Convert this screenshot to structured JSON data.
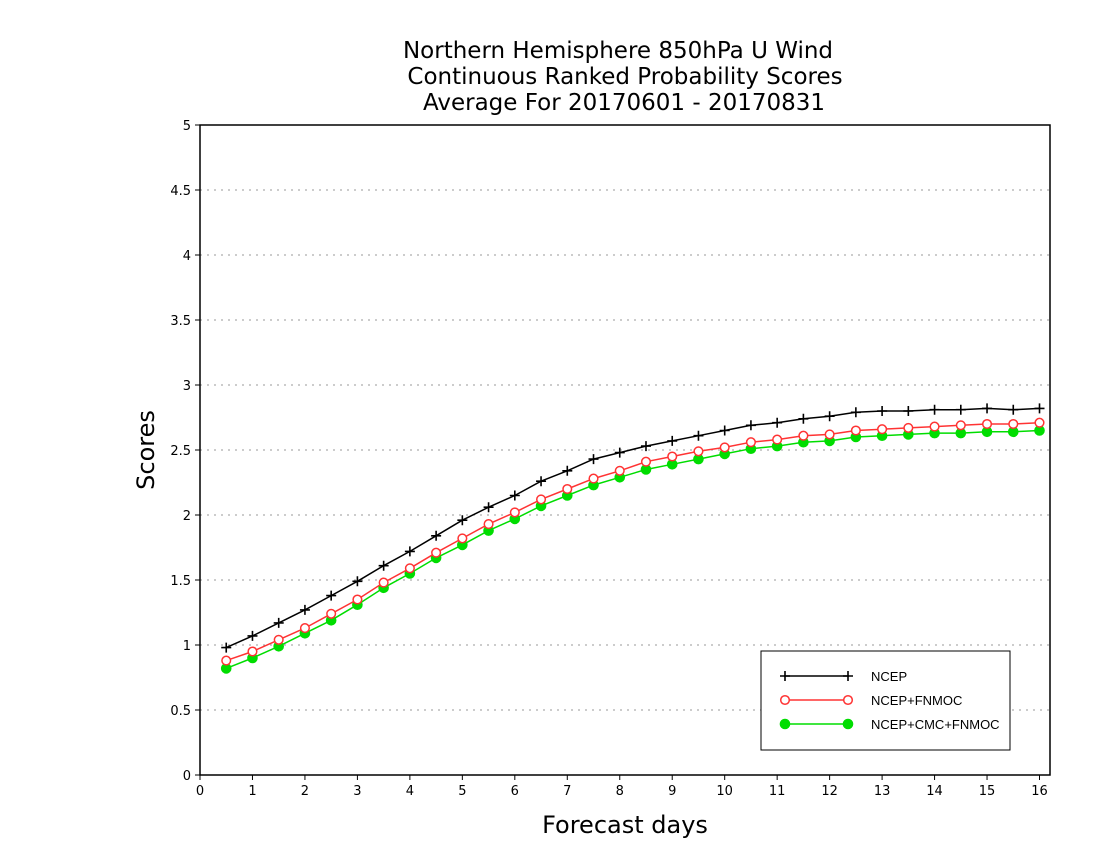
{
  "chart_data": {
    "type": "line",
    "title": [
      "Northern Hemisphere 850hPa U Wind",
      "Continuous Ranked Probability Scores",
      "Average For 20170601 - 20170831"
    ],
    "xlabel": "Forecast days",
    "ylabel": "Scores",
    "xlim": [
      0,
      16.2
    ],
    "ylim": [
      0,
      5
    ],
    "xticks": [
      0,
      1,
      2,
      3,
      4,
      5,
      6,
      7,
      8,
      9,
      10,
      11,
      12,
      13,
      14,
      15,
      16
    ],
    "yticks": [
      0,
      0.5,
      1,
      1.5,
      2,
      2.5,
      3,
      3.5,
      4,
      4.5,
      5
    ],
    "ytick_labels": [
      "0",
      "0.5",
      "1",
      "1.5",
      "2",
      "2.5",
      "3",
      "3.5",
      "4",
      "4.5",
      "5"
    ],
    "grid": "horizontal dotted",
    "legend_position": "bottom-right",
    "x": [
      0.5,
      1.0,
      1.5,
      2.0,
      2.5,
      3.0,
      3.5,
      4.0,
      4.5,
      5.0,
      5.5,
      6.0,
      6.5,
      7.0,
      7.5,
      8.0,
      8.5,
      9.0,
      9.5,
      10.0,
      10.5,
      11.0,
      11.5,
      12.0,
      12.5,
      13.0,
      13.5,
      14.0,
      14.5,
      15.0,
      15.5,
      16.0
    ],
    "series": [
      {
        "name": "NCEP",
        "color": "#000000",
        "marker": "plus",
        "values": [
          0.98,
          1.07,
          1.17,
          1.27,
          1.38,
          1.49,
          1.61,
          1.72,
          1.84,
          1.96,
          2.06,
          2.15,
          2.26,
          2.34,
          2.43,
          2.48,
          2.53,
          2.57,
          2.61,
          2.65,
          2.69,
          2.71,
          2.74,
          2.76,
          2.79,
          2.8,
          2.8,
          2.81,
          2.81,
          2.82,
          2.81,
          2.82
        ]
      },
      {
        "name": "NCEP+FNMOC",
        "color": "#ff3333",
        "marker": "open-circle",
        "values": [
          0.88,
          0.95,
          1.04,
          1.13,
          1.24,
          1.35,
          1.48,
          1.59,
          1.71,
          1.82,
          1.93,
          2.02,
          2.12,
          2.2,
          2.28,
          2.34,
          2.41,
          2.45,
          2.49,
          2.52,
          2.56,
          2.58,
          2.61,
          2.62,
          2.65,
          2.66,
          2.67,
          2.68,
          2.69,
          2.7,
          2.7,
          2.71
        ]
      },
      {
        "name": "NCEP+CMC+FNMOC",
        "color": "#00dd00",
        "marker": "filled-circle",
        "values": [
          0.82,
          0.9,
          0.99,
          1.09,
          1.19,
          1.31,
          1.44,
          1.55,
          1.67,
          1.77,
          1.88,
          1.97,
          2.07,
          2.15,
          2.23,
          2.29,
          2.35,
          2.39,
          2.43,
          2.47,
          2.51,
          2.53,
          2.56,
          2.57,
          2.6,
          2.61,
          2.62,
          2.63,
          2.63,
          2.64,
          2.64,
          2.65
        ]
      }
    ]
  }
}
